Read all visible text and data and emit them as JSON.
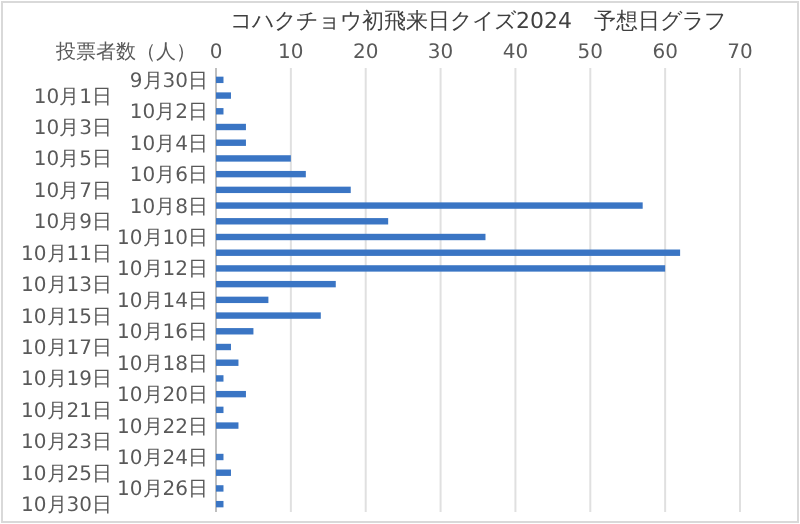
{
  "chart_data": {
    "type": "bar",
    "orientation": "horizontal",
    "title": "コハクチョウ初飛来日クイズ2024　予想日グラフ",
    "xlabel": "投票者数（人）",
    "categories": [
      "9月30日",
      "10月1日",
      "10月2日",
      "10月3日",
      "10月4日",
      "10月5日",
      "10月6日",
      "10月7日",
      "10月8日",
      "10月9日",
      "10月10日",
      "10月11日",
      "10月12日",
      "10月13日",
      "10月14日",
      "10月15日",
      "10月16日",
      "10月17日",
      "10月18日",
      "10月19日",
      "10月20日",
      "10月21日",
      "10月22日",
      "10月23日",
      "10月24日",
      "10月25日",
      "10月26日",
      "10月30日"
    ],
    "values": [
      1,
      2,
      1,
      4,
      4,
      10,
      12,
      18,
      57,
      23,
      36,
      62,
      60,
      16,
      7,
      14,
      5,
      2,
      3,
      1,
      4,
      1,
      3,
      0,
      1,
      2,
      1,
      1
    ],
    "color": "#3a75c4",
    "xlim": [
      0,
      70
    ],
    "xticks": [
      0,
      10,
      20,
      30,
      40,
      50,
      60,
      70
    ],
    "grid": "x"
  }
}
